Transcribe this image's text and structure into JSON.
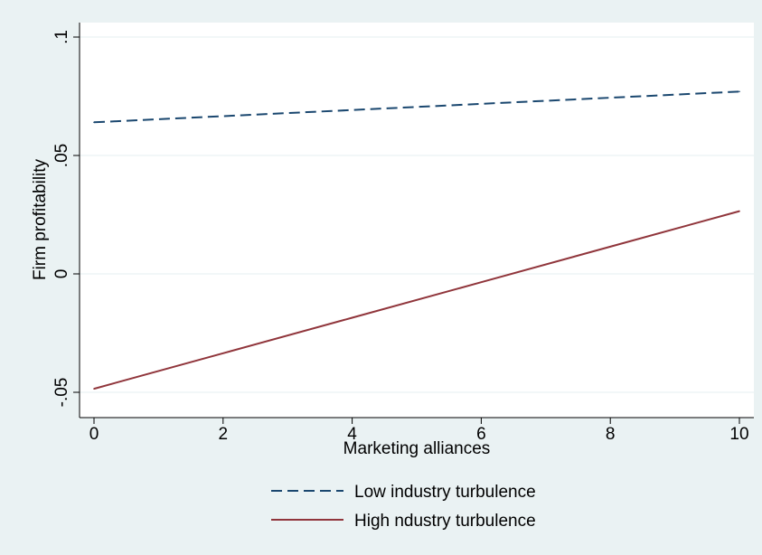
{
  "chart_data": {
    "type": "line",
    "xlabel": "Marketing alliances",
    "ylabel": "Firm profitability",
    "xlim": [
      0,
      10
    ],
    "ylim": [
      -0.05,
      0.1
    ],
    "x_ticks": [
      0,
      2,
      4,
      6,
      8,
      10
    ],
    "x_tick_labels": [
      "0",
      "2",
      "4",
      "6",
      "8",
      "10"
    ],
    "y_ticks": [
      -0.05,
      0,
      0.05,
      0.1
    ],
    "y_tick_labels": [
      "-.05",
      "0",
      ".05",
      ".1"
    ],
    "grid": "horizontal",
    "legend_position": "bottom",
    "series": [
      {
        "name": "Low industry turbulence",
        "x": [
          0,
          10
        ],
        "y": [
          0.064,
          0.077
        ],
        "color": "#1a476f",
        "style": "dashed"
      },
      {
        "name": "High ndustry turbulence",
        "x": [
          0,
          2,
          4,
          6,
          8,
          10
        ],
        "y": [
          -0.0485,
          -0.0335,
          -0.0185,
          -0.0035,
          0.0115,
          0.0265
        ],
        "color": "#90353b",
        "style": "solid"
      }
    ]
  },
  "colors": {
    "background": "#eaf2f3",
    "plot_background": "#ffffff",
    "grid": "#eaf2f3"
  }
}
